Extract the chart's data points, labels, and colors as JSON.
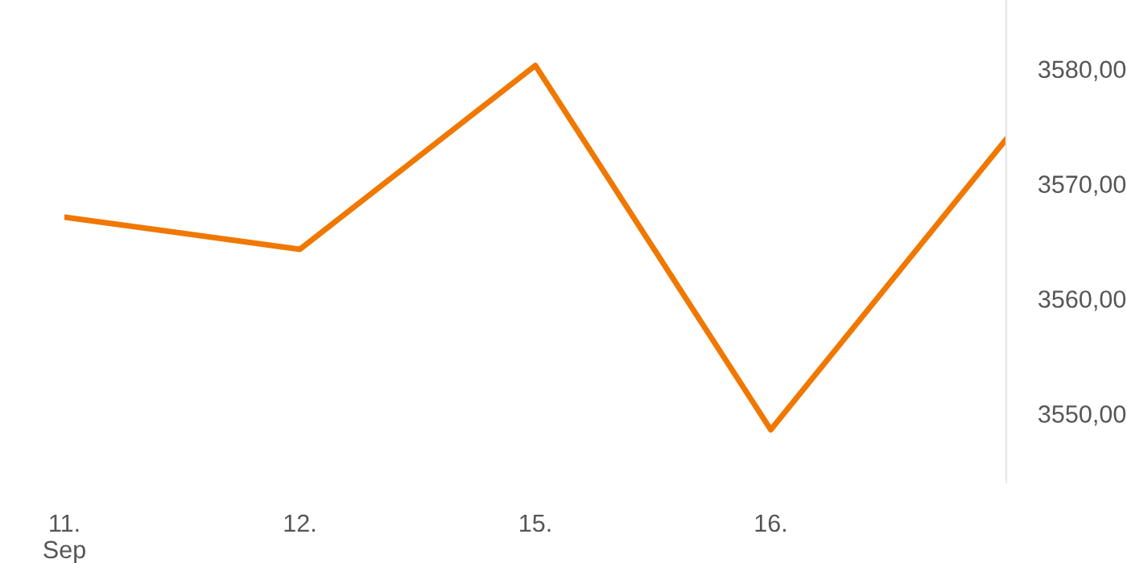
{
  "chart_data": {
    "type": "line",
    "categories": [
      "11.\nSep",
      "12.",
      "15.",
      "16.",
      null
    ],
    "series": [
      {
        "color": "#f07800",
        "values": [
          3567.1,
          3564.3,
          3580.3,
          3548.6,
          3573.9
        ]
      }
    ],
    "ylim": [
      3544,
      3586
    ],
    "yticks": [
      {
        "value": 3550,
        "label": "3550,00"
      },
      {
        "value": 3560,
        "label": "3560,00"
      },
      {
        "value": 3570,
        "label": "3570,00"
      },
      {
        "value": 3580,
        "label": "3580,00"
      }
    ],
    "grid": false,
    "legend": false,
    "marker": "none",
    "line_style": "solid"
  }
}
